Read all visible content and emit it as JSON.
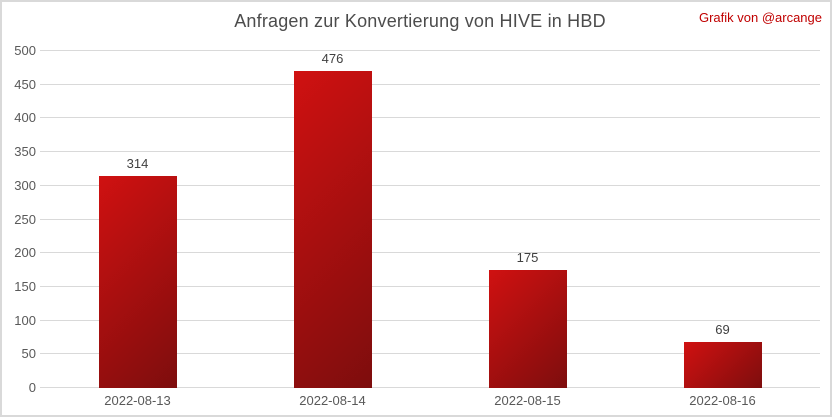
{
  "header": {
    "title": "Anfragen zur Konvertierung von HIVE in HBD",
    "attribution": "Grafik von @arcange"
  },
  "colors": {
    "bar_gradient_start": "#d01111",
    "bar_gradient_end": "#7d0d0d",
    "attribution_text": "#c00000",
    "title_text": "#4c4c4c",
    "axis_text": "#595959",
    "value_label_text": "#404040",
    "gridline": "#d9d9d9",
    "frame_border": "#d9d9d9",
    "background": "#ffffff"
  },
  "chart_data": {
    "type": "bar",
    "title": "Anfragen zur Konvertierung von HIVE in HBD",
    "categories": [
      "2022-08-13",
      "2022-08-14",
      "2022-08-15",
      "2022-08-16"
    ],
    "values": [
      314,
      476,
      175,
      69
    ],
    "xlabel": "",
    "ylabel": "",
    "ylim": [
      0,
      500
    ],
    "ytick_step": 50,
    "yticks": [
      0,
      50,
      100,
      150,
      200,
      250,
      300,
      350,
      400,
      450,
      500
    ],
    "grid": "horizontal",
    "legend": "none",
    "value_labels": "above-bars"
  }
}
